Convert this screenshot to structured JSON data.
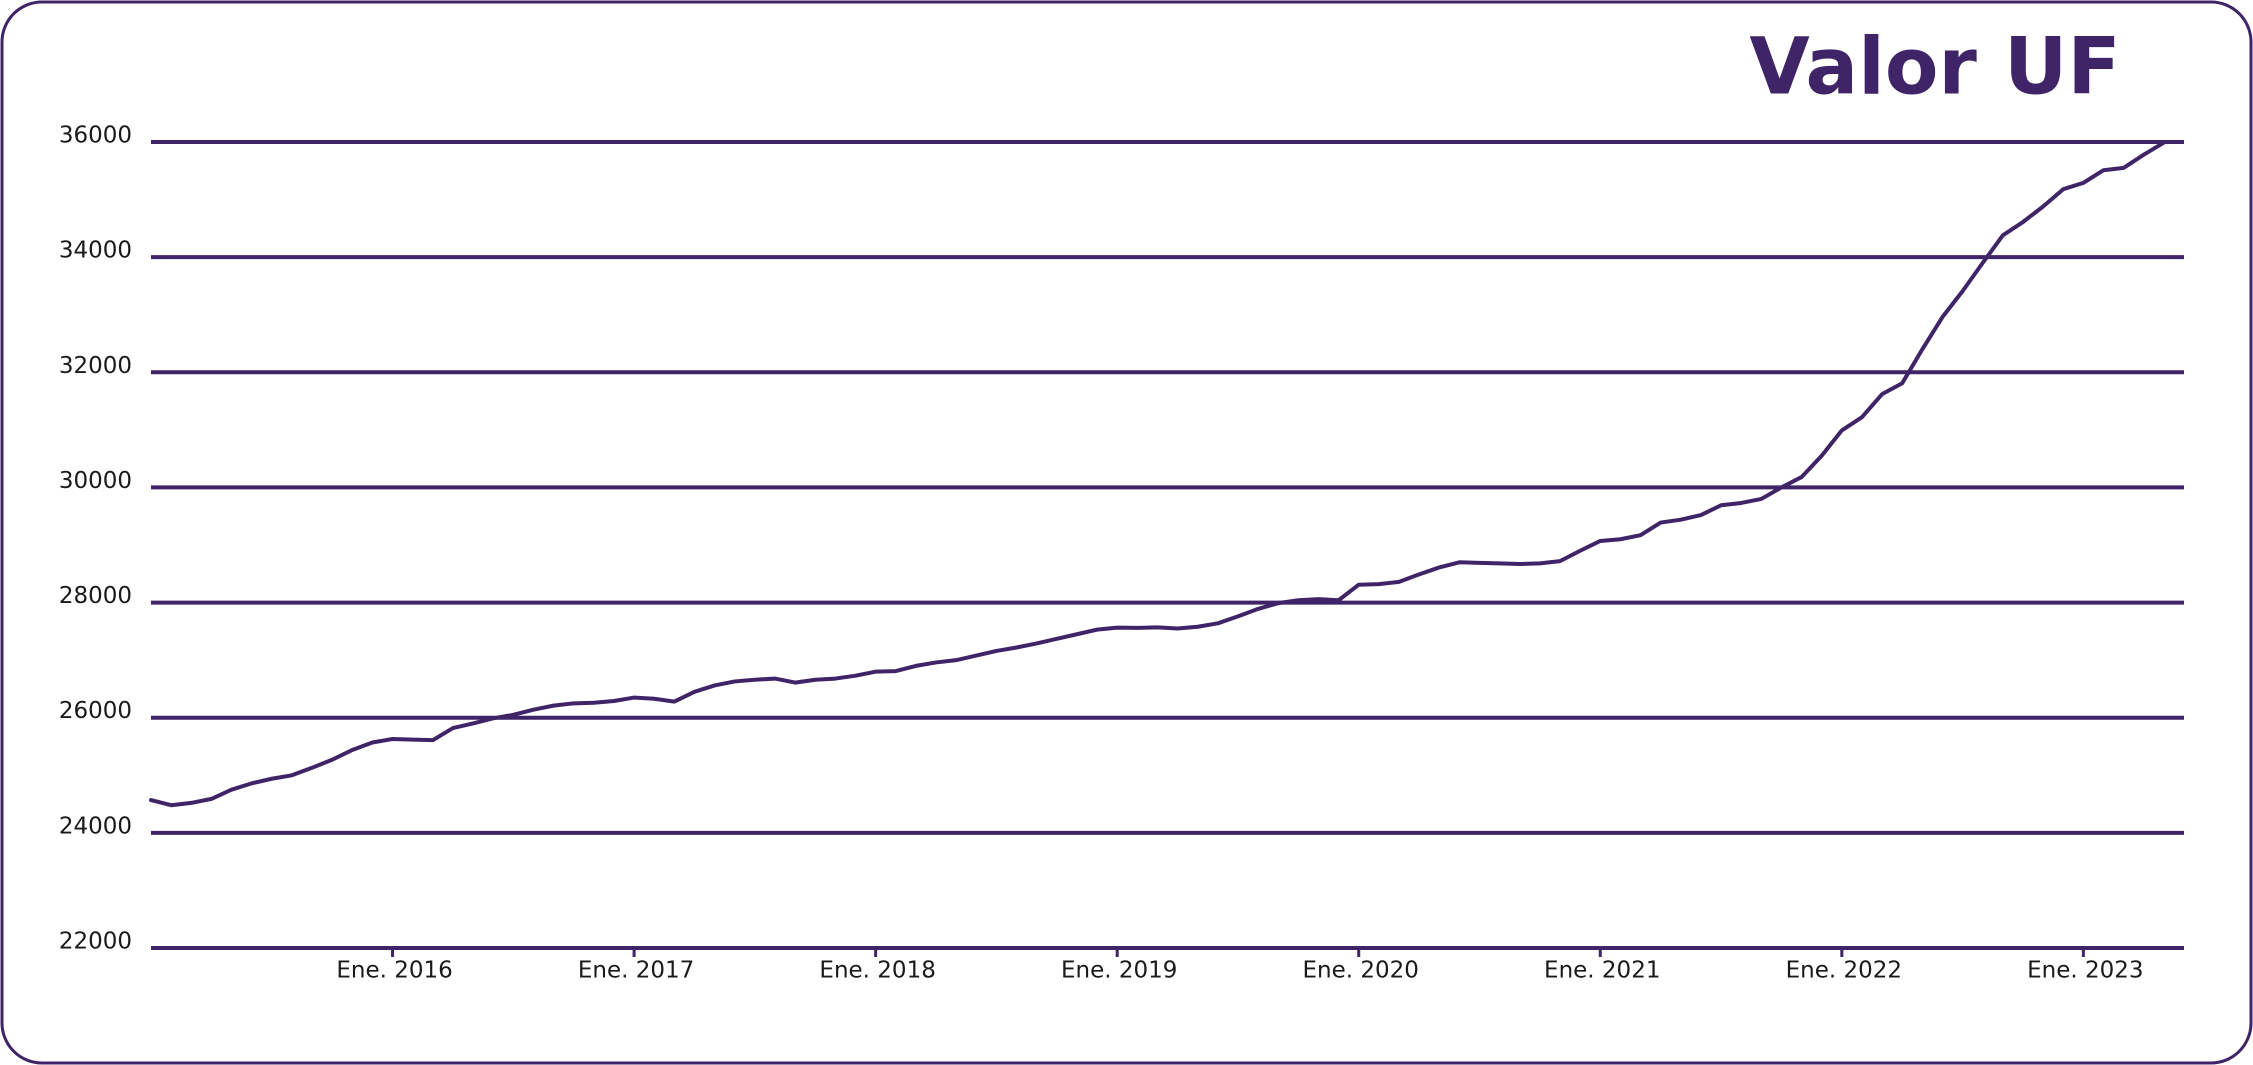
{
  "chart_data": {
    "type": "line",
    "title": "Valor UF",
    "x": [
      "2015-01",
      "2015-02",
      "2015-03",
      "2015-04",
      "2015-05",
      "2015-06",
      "2015-07",
      "2015-08",
      "2015-09",
      "2015-10",
      "2015-11",
      "2015-12",
      "2016-01",
      "2016-02",
      "2016-03",
      "2016-04",
      "2016-05",
      "2016-06",
      "2016-07",
      "2016-08",
      "2016-09",
      "2016-10",
      "2016-11",
      "2016-12",
      "2017-01",
      "2017-02",
      "2017-03",
      "2017-04",
      "2017-05",
      "2017-06",
      "2017-07",
      "2017-08",
      "2017-09",
      "2017-10",
      "2017-11",
      "2017-12",
      "2018-01",
      "2018-02",
      "2018-03",
      "2018-04",
      "2018-05",
      "2018-06",
      "2018-07",
      "2018-08",
      "2018-09",
      "2018-10",
      "2018-11",
      "2018-12",
      "2019-01",
      "2019-02",
      "2019-03",
      "2019-04",
      "2019-05",
      "2019-06",
      "2019-07",
      "2019-08",
      "2019-09",
      "2019-10",
      "2019-11",
      "2019-12",
      "2020-01",
      "2020-02",
      "2020-03",
      "2020-04",
      "2020-05",
      "2020-06",
      "2020-07",
      "2020-08",
      "2020-09",
      "2020-10",
      "2020-11",
      "2020-12",
      "2021-01",
      "2021-02",
      "2021-03",
      "2021-04",
      "2021-05",
      "2021-06",
      "2021-07",
      "2021-08",
      "2021-09",
      "2021-10",
      "2021-11",
      "2021-12",
      "2022-01",
      "2022-02",
      "2022-03",
      "2022-04",
      "2022-05",
      "2022-06",
      "2022-07",
      "2022-08",
      "2022-09",
      "2022-10",
      "2022-11",
      "2022-12",
      "2023-01",
      "2023-02",
      "2023-03",
      "2023-04",
      "2023-05"
    ],
    "series": [
      {
        "name": "Valor UF",
        "color": "#3f2567",
        "values": [
          24570,
          24480,
          24520,
          24590,
          24750,
          24860,
          24940,
          25000,
          25130,
          25270,
          25440,
          25570,
          25630,
          25620,
          25610,
          25820,
          25900,
          25990,
          26050,
          26140,
          26210,
          26250,
          26260,
          26290,
          26350,
          26330,
          26280,
          26450,
          26560,
          26630,
          26660,
          26680,
          26610,
          26660,
          26680,
          26730,
          26800,
          26810,
          26900,
          26960,
          27000,
          27080,
          27160,
          27220,
          27290,
          27370,
          27450,
          27530,
          27565,
          27560,
          27570,
          27550,
          27580,
          27640,
          27760,
          27890,
          27990,
          28040,
          28060,
          28040,
          28310,
          28320,
          28360,
          28490,
          28610,
          28700,
          28690,
          28680,
          28670,
          28680,
          28720,
          28900,
          29070,
          29100,
          29170,
          29390,
          29440,
          29520,
          29690,
          29730,
          29800,
          30000,
          30180,
          30550,
          30990,
          31220,
          31620,
          31810,
          32400,
          32960,
          33410,
          33900,
          34380,
          34610,
          34880,
          35180,
          35290,
          35510,
          35550,
          35780,
          35990
        ]
      }
    ],
    "xlim": [
      "2015-01",
      "2023-06"
    ],
    "xticks": [
      {
        "value": "2016-01",
        "label": "Ene. 2016"
      },
      {
        "value": "2017-01",
        "label": "Ene. 2017"
      },
      {
        "value": "2018-01",
        "label": "Ene. 2018"
      },
      {
        "value": "2019-01",
        "label": "Ene. 2019"
      },
      {
        "value": "2020-01",
        "label": "Ene. 2020"
      },
      {
        "value": "2021-01",
        "label": "Ene. 2021"
      },
      {
        "value": "2022-01",
        "label": "Ene. 2022"
      },
      {
        "value": "2023-01",
        "label": "Ene. 2023"
      }
    ],
    "ylim": [
      22000,
      36000
    ],
    "yticks": [
      22000,
      24000,
      26000,
      28000,
      30000,
      32000,
      34000,
      36000
    ],
    "grid": true
  }
}
